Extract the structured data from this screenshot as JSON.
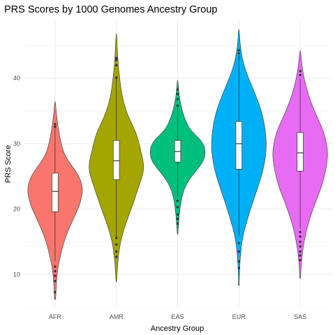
{
  "chart_data": {
    "type": "violin",
    "title": "PRS Scores by 1000 Genomes Ancestry Group",
    "xlabel": "Ancestry Group",
    "ylabel": "PRS Score",
    "ylim": [
      4.8,
      49.2
    ],
    "y_ticks": [
      10,
      20,
      30,
      40
    ],
    "grid": true,
    "legend": "none",
    "categories": [
      "AFR",
      "AMR",
      "EAS",
      "EUR",
      "SAS"
    ],
    "series": [
      {
        "category": "AFR",
        "color": "#F8766D",
        "min": 6.2,
        "q1": 19.6,
        "median": 22.7,
        "q3": 25.5,
        "max": 36.5,
        "whisker_low": 12.0,
        "whisker_high": 32.6,
        "density": [
          [
            6.2,
            0.02
          ],
          [
            9,
            0.05
          ],
          [
            11,
            0.1
          ],
          [
            13,
            0.2
          ],
          [
            15,
            0.32
          ],
          [
            17,
            0.5
          ],
          [
            19,
            0.72
          ],
          [
            20.5,
            0.88
          ],
          [
            22,
            0.97
          ],
          [
            23,
            1.0
          ],
          [
            24.5,
            0.93
          ],
          [
            26,
            0.72
          ],
          [
            27.5,
            0.45
          ],
          [
            29,
            0.28
          ],
          [
            31,
            0.17
          ],
          [
            33,
            0.09
          ],
          [
            35,
            0.04
          ],
          [
            36.5,
            0.01
          ]
        ],
        "outliers": [
          7.3,
          9.0,
          9.8,
          10.5,
          11.2,
          32.6,
          33.0
        ]
      },
      {
        "category": "AMR",
        "color": "#A3A500",
        "min": 8.9,
        "q1": 24.5,
        "median": 27.4,
        "q3": 30.5,
        "max": 46.9,
        "whisker_low": 15.8,
        "whisker_high": 40.0,
        "density": [
          [
            8.9,
            0.01
          ],
          [
            11,
            0.04
          ],
          [
            13,
            0.08
          ],
          [
            15,
            0.15
          ],
          [
            17,
            0.28
          ],
          [
            19,
            0.45
          ],
          [
            21,
            0.62
          ],
          [
            23,
            0.78
          ],
          [
            24.5,
            0.9
          ],
          [
            26,
            1.0
          ],
          [
            27.5,
            0.97
          ],
          [
            29,
            0.88
          ],
          [
            30.5,
            0.8
          ],
          [
            32,
            0.68
          ],
          [
            34,
            0.45
          ],
          [
            36,
            0.28
          ],
          [
            38,
            0.18
          ],
          [
            40,
            0.12
          ],
          [
            42,
            0.07
          ],
          [
            44,
            0.04
          ],
          [
            46.9,
            0.01
          ]
        ],
        "outliers": [
          12.7,
          13.5,
          14.6,
          15.6,
          40.1,
          42.0,
          42.8,
          43.1
        ]
      },
      {
        "category": "EAS",
        "color": "#00BF7D",
        "min": 16.2,
        "q1": 27.2,
        "median": 28.8,
        "q3": 30.5,
        "max": 39.7,
        "whisker_low": 22.0,
        "whisker_high": 35.5,
        "density": [
          [
            16.2,
            0.01
          ],
          [
            18,
            0.04
          ],
          [
            20,
            0.08
          ],
          [
            22,
            0.16
          ],
          [
            23.5,
            0.28
          ],
          [
            25,
            0.5
          ],
          [
            26.5,
            0.8
          ],
          [
            27.5,
            0.95
          ],
          [
            28.5,
            1.0
          ],
          [
            29.5,
            0.98
          ],
          [
            30.5,
            0.85
          ],
          [
            31.5,
            0.6
          ],
          [
            32.5,
            0.4
          ],
          [
            34,
            0.24
          ],
          [
            35.5,
            0.14
          ],
          [
            37,
            0.07
          ],
          [
            38.5,
            0.03
          ],
          [
            39.7,
            0.01
          ]
        ],
        "outliers": [
          17.8,
          18.5,
          19.2,
          20.3,
          21.3,
          35.8,
          36.8,
          37.6,
          38.3
        ]
      },
      {
        "category": "EUR",
        "color": "#00B0F6",
        "min": 8.3,
        "q1": 26.1,
        "median": 30.0,
        "q3": 33.4,
        "max": 47.5,
        "whisker_low": 16.0,
        "whisker_high": 43.5,
        "density": [
          [
            8.3,
            0.01
          ],
          [
            10,
            0.02
          ],
          [
            12,
            0.04
          ],
          [
            14,
            0.08
          ],
          [
            16,
            0.15
          ],
          [
            18,
            0.28
          ],
          [
            20,
            0.42
          ],
          [
            22,
            0.58
          ],
          [
            24,
            0.74
          ],
          [
            26,
            0.88
          ],
          [
            28,
            0.97
          ],
          [
            30,
            1.0
          ],
          [
            32,
            0.96
          ],
          [
            34,
            0.88
          ],
          [
            36,
            0.74
          ],
          [
            38,
            0.55
          ],
          [
            40,
            0.35
          ],
          [
            42,
            0.18
          ],
          [
            44,
            0.08
          ],
          [
            46,
            0.03
          ],
          [
            47.5,
            0.01
          ]
        ],
        "outliers": [
          11.0,
          12.0,
          13.5,
          14.8,
          43.8,
          44.3
        ]
      },
      {
        "category": "SAS",
        "color": "#E76BF3",
        "min": 9.4,
        "q1": 25.8,
        "median": 28.6,
        "q3": 31.7,
        "max": 44.3,
        "whisker_low": 17.0,
        "whisker_high": 40.0,
        "density": [
          [
            9.4,
            0.01
          ],
          [
            11,
            0.03
          ],
          [
            13,
            0.07
          ],
          [
            15,
            0.14
          ],
          [
            17,
            0.24
          ],
          [
            19,
            0.38
          ],
          [
            21,
            0.55
          ],
          [
            23,
            0.74
          ],
          [
            25,
            0.88
          ],
          [
            27,
            0.97
          ],
          [
            28.5,
            1.0
          ],
          [
            30,
            0.96
          ],
          [
            32,
            0.84
          ],
          [
            34,
            0.62
          ],
          [
            36,
            0.42
          ],
          [
            38,
            0.26
          ],
          [
            40,
            0.14
          ],
          [
            42,
            0.06
          ],
          [
            44.3,
            0.01
          ]
        ],
        "outliers": [
          12.2,
          12.9,
          13.5,
          14.3,
          15.0,
          15.8,
          16.5,
          40.5,
          41.1
        ]
      }
    ]
  }
}
